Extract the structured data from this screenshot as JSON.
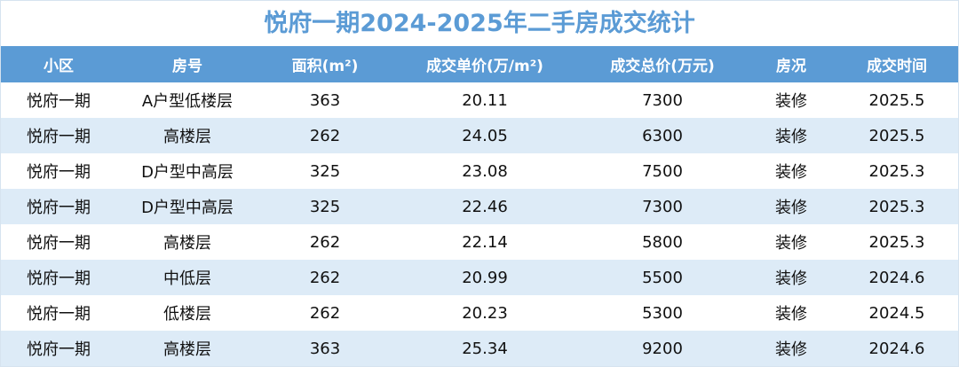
{
  "header": {
    "title": "悦府一期2024-2025年二手房成交统计"
  },
  "table": {
    "columns": [
      "小区",
      "房号",
      "面积(m²)",
      "成交单价(万/m²)",
      "成交总价(万元)",
      "房况",
      "成交时间"
    ],
    "rows": [
      [
        "悦府一期",
        "A户型低楼层",
        "363",
        "20.11",
        "7300",
        "装修",
        "2025.5"
      ],
      [
        "悦府一期",
        "高楼层",
        "262",
        "24.05",
        "6300",
        "装修",
        "2025.5"
      ],
      [
        "悦府一期",
        "D户型中高层",
        "325",
        "23.08",
        "7500",
        "装修",
        "2025.3"
      ],
      [
        "悦府一期",
        "D户型中高层",
        "325",
        "22.46",
        "7300",
        "装修",
        "2025.3"
      ],
      [
        "悦府一期",
        "高楼层",
        "262",
        "22.14",
        "5800",
        "装修",
        "2025.3"
      ],
      [
        "悦府一期",
        "中低层",
        "262",
        "20.99",
        "5500",
        "装修",
        "2024.6"
      ],
      [
        "悦府一期",
        "低楼层",
        "262",
        "20.23",
        "5300",
        "装修",
        "2024.5"
      ],
      [
        "悦府一期",
        "高楼层",
        "363",
        "25.34",
        "9200",
        "装修",
        "2024.6"
      ]
    ]
  }
}
